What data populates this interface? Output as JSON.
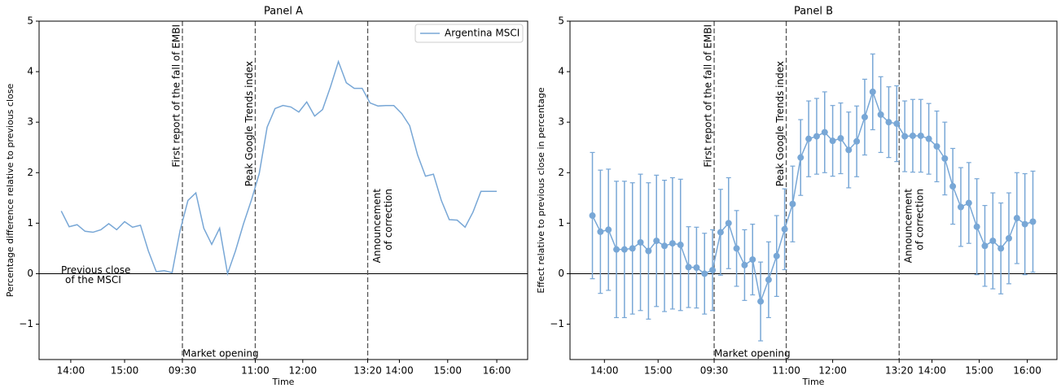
{
  "chart_data": [
    {
      "type": "line",
      "title": "Panel A",
      "xlabel": "Time",
      "ylabel": "Percentage difference relative to previous close",
      "x": [
        0,
        1,
        2,
        3,
        4,
        5,
        6,
        7,
        8,
        9,
        10,
        11,
        12,
        13,
        14,
        15,
        16,
        17,
        18,
        19,
        20,
        21,
        22,
        23,
        24,
        25,
        26,
        27,
        28,
        29,
        30,
        31,
        32,
        33,
        34,
        35,
        36,
        37,
        38,
        39,
        40,
        41,
        42,
        43,
        44,
        45,
        46,
        47,
        48,
        49,
        50,
        51,
        52,
        53,
        54,
        55
      ],
      "series": [
        {
          "name": "Argentina MSCI",
          "color": "#78a7d6",
          "values": [
            1.24,
            0.93,
            0.97,
            0.84,
            0.82,
            0.87,
            0.99,
            0.87,
            1.03,
            0.92,
            0.96,
            0.45,
            0.04,
            0.06,
            0.02,
            0.85,
            1.45,
            1.6,
            0.9,
            0.58,
            0.9,
            0.0,
            0.45,
            0.98,
            1.45,
            1.98,
            2.9,
            3.27,
            3.33,
            3.3,
            3.2,
            3.4,
            3.12,
            3.25,
            3.7,
            4.2,
            3.78,
            3.67,
            3.67,
            3.38,
            3.32,
            3.33,
            3.33,
            3.17,
            2.93,
            2.35,
            1.93,
            1.97,
            1.45,
            1.07,
            1.06,
            0.92,
            1.22,
            1.63,
            1.63,
            1.63
          ]
        }
      ],
      "xlim": [
        -2.8,
        58.9
      ],
      "ylim": [
        -1.7,
        5
      ],
      "xticks": [
        {
          "value": 1.2,
          "label": "14:00"
        },
        {
          "value": 8,
          "label": "15:00"
        },
        {
          "value": 15.3,
          "label": "09:30"
        },
        {
          "value": 24.5,
          "label": "11:00"
        },
        {
          "value": 30.5,
          "label": "12:00"
        },
        {
          "value": 38.7,
          "label": "13:20"
        },
        {
          "value": 42.7,
          "label": "14:00"
        },
        {
          "value": 48.8,
          "label": "15:00"
        },
        {
          "value": 55,
          "label": "16:00"
        }
      ],
      "yticks": [
        {
          "value": -1,
          "label": "−1"
        },
        0,
        1,
        2,
        3,
        4,
        5
      ],
      "vlines": [
        {
          "x": 15.3,
          "label": [
            "First report of the fall of EMBI"
          ],
          "note": "Market opening"
        },
        {
          "x": 24.5,
          "label": [
            "Peak Google Trends index"
          ]
        },
        {
          "x": 38.7,
          "label": [
            "Announcement",
            "of correction"
          ]
        }
      ],
      "hline": {
        "y": 0,
        "label": [
          "Previous close",
          "of the MSCI"
        ]
      },
      "legend": "upper right"
    },
    {
      "type": "errorbar",
      "title": "Panel B",
      "xlabel": "Time",
      "ylabel": "Effect relative to previous close in percentage",
      "x": [
        0,
        1,
        2,
        3,
        4,
        5,
        6,
        7,
        8,
        9,
        10,
        11,
        12,
        13,
        14,
        15,
        16,
        17,
        18,
        19,
        20,
        21,
        22,
        23,
        24,
        25,
        26,
        27,
        28,
        29,
        30,
        31,
        32,
        33,
        34,
        35,
        36,
        37,
        38,
        39,
        40,
        41,
        42,
        43,
        44,
        45,
        46,
        47,
        48,
        49,
        50,
        51,
        52,
        53,
        54,
        55
      ],
      "series": [
        {
          "color": "#78a7d6",
          "values": [
            1.15,
            0.83,
            0.87,
            0.48,
            0.48,
            0.5,
            0.62,
            0.45,
            0.65,
            0.55,
            0.6,
            0.57,
            0.13,
            0.12,
            0.0,
            0.07,
            0.82,
            1.0,
            0.5,
            0.17,
            0.28,
            -0.55,
            -0.12,
            0.35,
            0.88,
            1.38,
            2.3,
            2.67,
            2.72,
            2.8,
            2.63,
            2.68,
            2.45,
            2.62,
            3.1,
            3.6,
            3.15,
            3.0,
            2.97,
            2.72,
            2.73,
            2.73,
            2.67,
            2.52,
            2.28,
            1.73,
            1.32,
            1.4,
            0.93,
            0.55,
            0.65,
            0.5,
            0.7,
            1.1,
            0.98,
            1.03
          ],
          "errors": [
            1.25,
            1.22,
            1.2,
            1.35,
            1.35,
            1.3,
            1.35,
            1.35,
            1.3,
            1.3,
            1.3,
            1.3,
            0.8,
            0.8,
            0.8,
            0.8,
            0.85,
            0.9,
            0.75,
            0.7,
            0.7,
            0.78,
            0.75,
            0.8,
            0.8,
            0.75,
            0.75,
            0.75,
            0.75,
            0.8,
            0.7,
            0.7,
            0.75,
            0.7,
            0.75,
            0.75,
            0.75,
            0.7,
            0.75,
            0.7,
            0.72,
            0.72,
            0.7,
            0.7,
            0.72,
            0.75,
            0.78,
            0.8,
            0.95,
            0.8,
            0.95,
            0.9,
            0.9,
            0.9,
            1.0,
            1.0
          ]
        }
      ],
      "xlim": [
        -2.8,
        58.0
      ],
      "ylim": [
        -1.7,
        5
      ],
      "xticks": [
        {
          "value": 1.5,
          "label": "14:00"
        },
        {
          "value": 8.2,
          "label": "15:00"
        },
        {
          "value": 15.2,
          "label": "09:30"
        },
        {
          "value": 24.2,
          "label": "11:00"
        },
        {
          "value": 30,
          "label": "12:00"
        },
        {
          "value": 38.3,
          "label": "13:20"
        },
        {
          "value": 42.4,
          "label": "14:00"
        },
        {
          "value": 48.3,
          "label": "15:00"
        },
        {
          "value": 54.3,
          "label": "16:00"
        }
      ],
      "yticks": [
        {
          "value": -1,
          "label": "−1"
        },
        0,
        1,
        2,
        3,
        4,
        5
      ],
      "vlines": [
        {
          "x": 15.2,
          "label": [
            "First report of the fall of EMBI"
          ],
          "note": "Market opening"
        },
        {
          "x": 24.2,
          "label": [
            "Peak Google Trends index"
          ]
        },
        {
          "x": 38.3,
          "label": [
            "Announcement",
            "of correction"
          ]
        }
      ],
      "hline": {
        "y": 0
      }
    }
  ]
}
